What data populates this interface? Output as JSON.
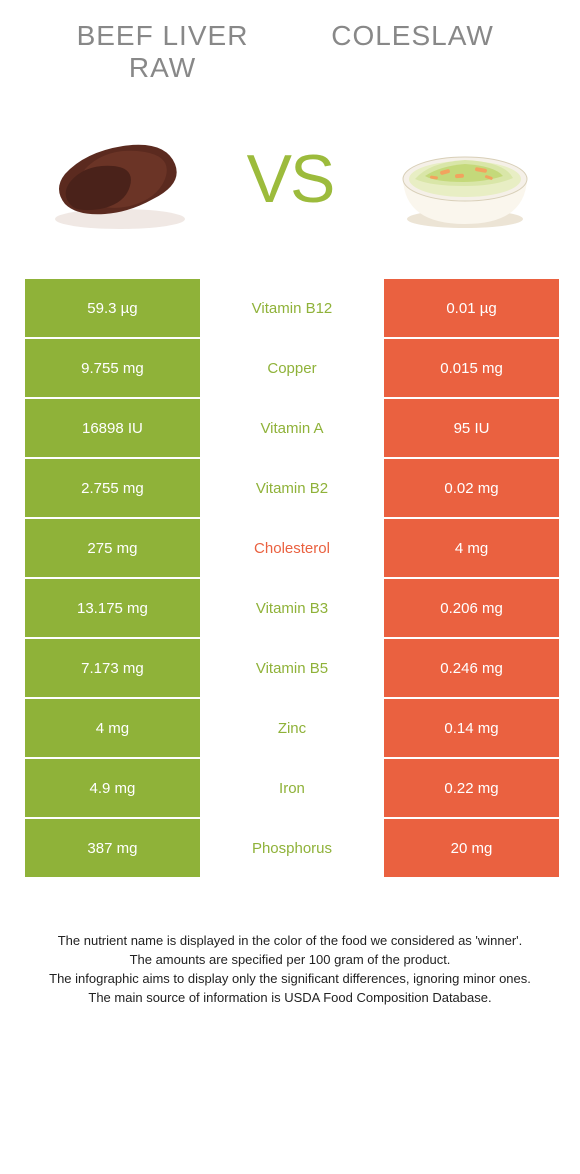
{
  "titles": {
    "left": "BEEF LIVER\nRAW",
    "right": "COLESLAW"
  },
  "vs": "VS",
  "colors": {
    "left_winner": "#8fb239",
    "right_winner": "#ea6140",
    "nutrient_left_text": "#8fb239",
    "nutrient_right_text": "#ea6140"
  },
  "rows": [
    {
      "left": "59.3 µg",
      "mid": "Vitamin B12",
      "right": "0.01 µg",
      "winner": "left"
    },
    {
      "left": "9.755 mg",
      "mid": "Copper",
      "right": "0.015 mg",
      "winner": "left"
    },
    {
      "left": "16898 IU",
      "mid": "Vitamin A",
      "right": "95 IU",
      "winner": "left"
    },
    {
      "left": "2.755 mg",
      "mid": "Vitamin B2",
      "right": "0.02 mg",
      "winner": "left"
    },
    {
      "left": "275 mg",
      "mid": "Cholesterol",
      "right": "4 mg",
      "winner": "right"
    },
    {
      "left": "13.175 mg",
      "mid": "Vitamin B3",
      "right": "0.206 mg",
      "winner": "left"
    },
    {
      "left": "7.173 mg",
      "mid": "Vitamin B5",
      "right": "0.246 mg",
      "winner": "left"
    },
    {
      "left": "4 mg",
      "mid": "Zinc",
      "right": "0.14 mg",
      "winner": "left"
    },
    {
      "left": "4.9 mg",
      "mid": "Iron",
      "right": "0.22 mg",
      "winner": "left"
    },
    {
      "left": "387 mg",
      "mid": "Phosphorus",
      "right": "20 mg",
      "winner": "left"
    }
  ],
  "footer": [
    "The nutrient name is displayed in the color of the food we considered as 'winner'.",
    "The amounts are specified per 100 gram of the product.",
    "The infographic aims to display only the significant differences, ignoring minor ones.",
    "The main source of information is USDA Food Composition Database."
  ]
}
